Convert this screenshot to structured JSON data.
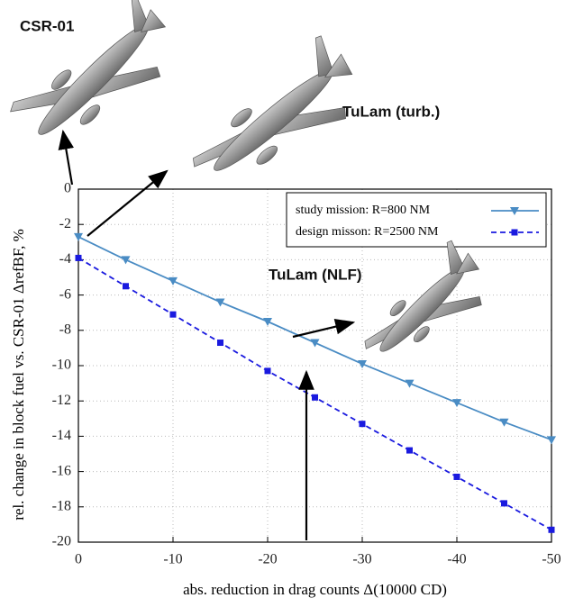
{
  "chart_data": {
    "type": "line",
    "xlabel": "abs. reduction in drag counts Δ(10000 CD)",
    "ylabel": "rel. change in block fuel vs. CSR-01 ΔrefBF, %",
    "annotations": [
      "CSR-01",
      "TuLam (turb.)",
      "TuLam (NLF)"
    ],
    "x": [
      0,
      -5,
      -10,
      -15,
      -20,
      -25,
      -30,
      -35,
      -40,
      -45,
      -50
    ],
    "series": [
      {
        "name": "study mission: R=800 NM",
        "color": "#4a8cc4",
        "dash": false,
        "marker": "triangle",
        "values": [
          -2.7,
          -4.0,
          -5.2,
          -6.4,
          -7.5,
          -8.7,
          -9.9,
          -11.0,
          -12.1,
          -13.2,
          -14.2
        ]
      },
      {
        "name": "design misson: R=2500 NM",
        "color": "#1a1adf",
        "dash": true,
        "marker": "square",
        "values": [
          -3.9,
          -5.5,
          -7.1,
          -8.7,
          -10.3,
          -11.8,
          -13.3,
          -14.8,
          -16.3,
          -17.8,
          -19.3
        ]
      }
    ],
    "xlim": [
      0,
      -50
    ],
    "xticks": [
      0,
      -10,
      -20,
      -30,
      -40,
      -50
    ],
    "ylim": [
      -20,
      0
    ],
    "yticks": [
      -20,
      -18,
      -16,
      -14,
      -12,
      -10,
      -8,
      -6,
      -4,
      -2,
      0
    ],
    "grid": true
  }
}
